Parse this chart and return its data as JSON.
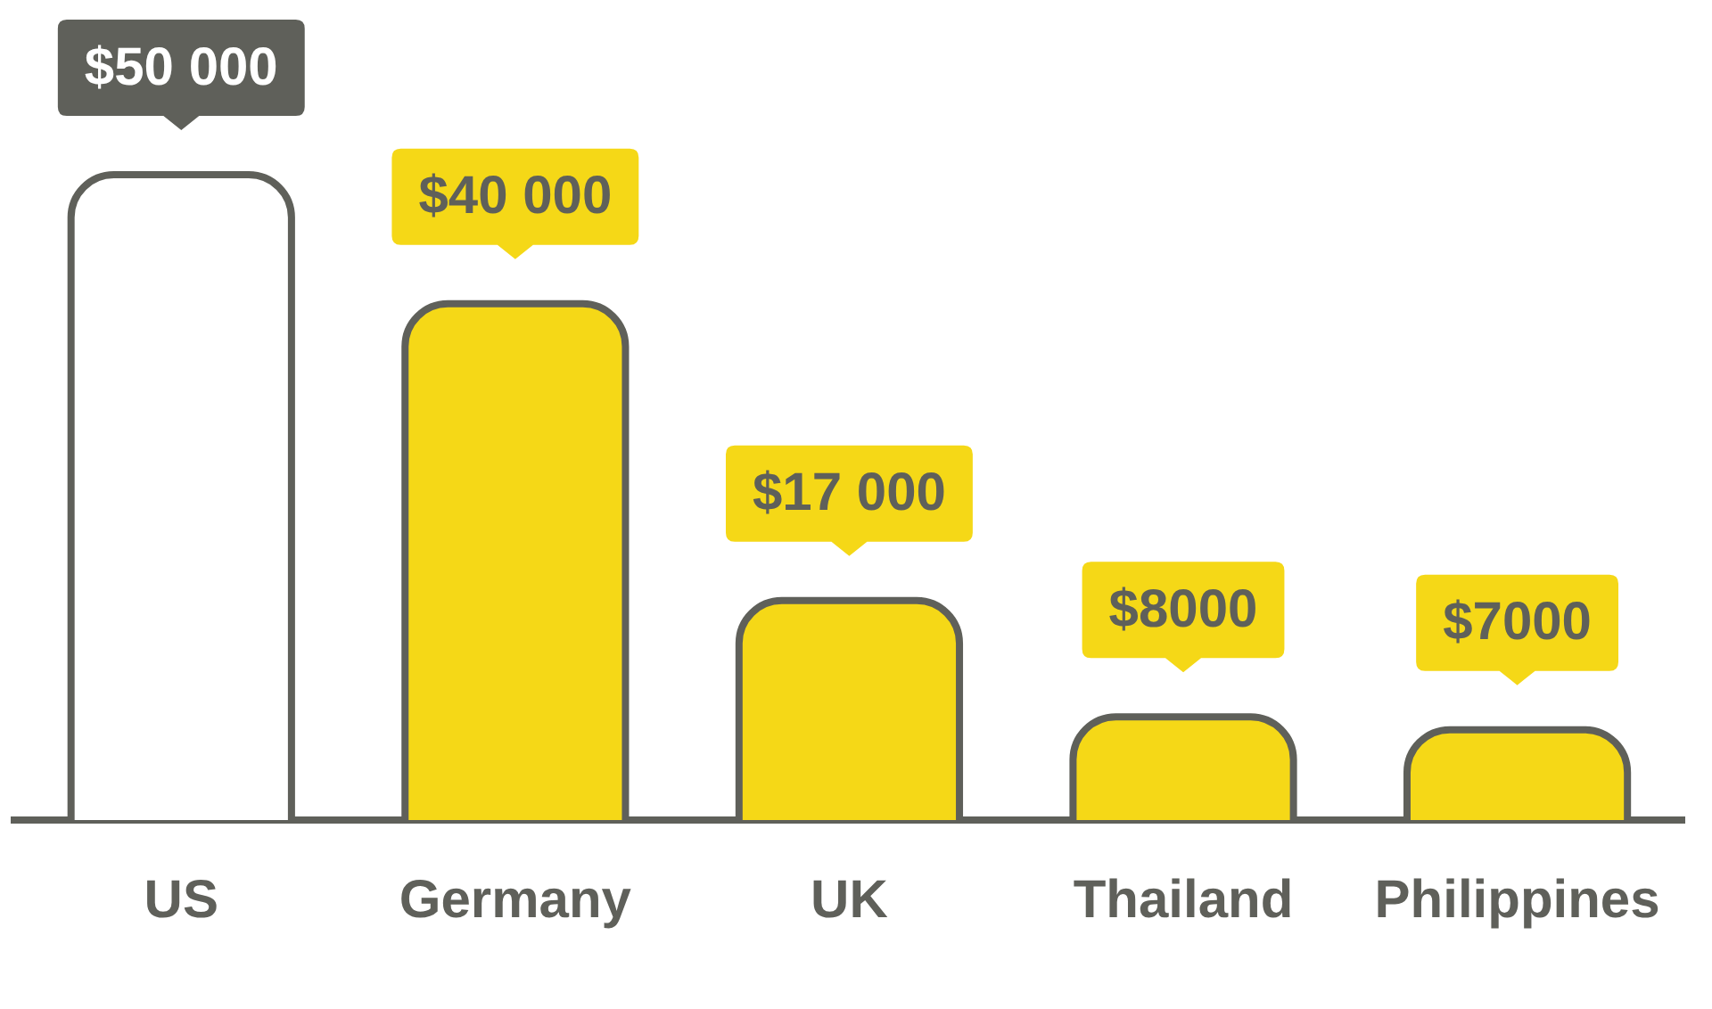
{
  "chart_data": {
    "type": "bar",
    "categories": [
      "US",
      "Germany",
      "UK",
      "Thailand",
      "Philippines"
    ],
    "values": [
      50000,
      40000,
      17000,
      8000,
      7000
    ],
    "value_labels": [
      "$50 000",
      "$40 000",
      "$17 000",
      "$8000",
      "$7000"
    ],
    "colors": [
      "#ffffff",
      "#f5d817",
      "#f5d817",
      "#f5d817",
      "#f5d817"
    ],
    "tick_labels": "x",
    "grid": false,
    "legend": false
  }
}
